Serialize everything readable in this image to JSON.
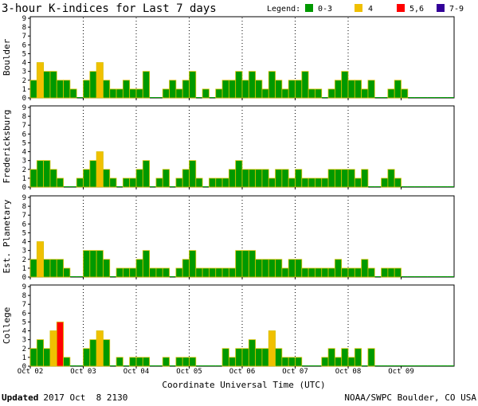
{
  "header": {
    "title": "3-hour K-indices for Last 7 days",
    "legend_label": "Legend:",
    "legend": [
      {
        "label": "0-3",
        "color": "#009900"
      },
      {
        "label": "4",
        "color": "#f0c000"
      },
      {
        "label": "5,6",
        "color": "#ff0000"
      },
      {
        "label": "7-9",
        "color": "#330099"
      }
    ]
  },
  "footer": {
    "updated_label": "Updated",
    "updated_value": "2017 Oct  8 2130",
    "source": "NOAA/SWPC Boulder, CO USA"
  },
  "x_axis": {
    "title": "Coordinate Universal Time (UTC)",
    "tick_labels": [
      "Oct 02",
      "Oct 03",
      "Oct 04",
      "Oct 05",
      "Oct 06",
      "Oct 07",
      "Oct 08",
      "Oct 09"
    ]
  },
  "y_ticks": [
    "0",
    "1",
    "2",
    "3",
    "4",
    "5",
    "6",
    "7",
    "8",
    "9"
  ],
  "chart_data": [
    {
      "type": "bar",
      "ylabel": "Boulder",
      "ylim": [
        0,
        9
      ],
      "values": [
        2,
        4,
        3,
        3,
        2,
        2,
        1,
        0,
        2,
        3,
        4,
        2,
        1,
        1,
        2,
        1,
        1,
        3,
        0,
        0,
        1,
        2,
        1,
        2,
        3,
        0,
        1,
        0,
        1,
        2,
        2,
        3,
        2,
        3,
        2,
        1,
        3,
        2,
        1,
        2,
        2,
        3,
        1,
        1,
        0,
        1,
        2,
        3,
        2,
        2,
        1,
        2,
        0,
        0,
        1,
        2,
        1,
        0,
        0,
        0,
        0,
        0,
        0,
        0
      ]
    },
    {
      "type": "bar",
      "ylabel": "Fredericksburg",
      "ylim": [
        0,
        9
      ],
      "values": [
        2,
        3,
        3,
        2,
        1,
        0,
        0,
        1,
        2,
        3,
        4,
        2,
        1,
        0,
        1,
        1,
        2,
        3,
        0,
        1,
        2,
        0,
        1,
        2,
        3,
        1,
        0,
        1,
        1,
        1,
        2,
        3,
        2,
        2,
        2,
        2,
        1,
        2,
        2,
        1,
        2,
        1,
        1,
        1,
        1,
        2,
        2,
        2,
        2,
        1,
        2,
        0,
        0,
        1,
        2,
        1,
        0,
        0,
        0,
        0,
        0,
        0,
        0,
        0
      ]
    },
    {
      "type": "bar",
      "ylabel": "Est. Planetary",
      "ylim": [
        0,
        9
      ],
      "values": [
        2,
        4,
        2,
        2,
        2,
        1,
        0,
        0,
        3,
        3,
        3,
        2,
        0,
        1,
        1,
        1,
        2,
        3,
        1,
        1,
        1,
        0,
        1,
        2,
        3,
        1,
        1,
        1,
        1,
        1,
        1,
        3,
        3,
        3,
        2,
        2,
        2,
        2,
        1,
        2,
        2,
        1,
        1,
        1,
        1,
        1,
        2,
        1,
        1,
        1,
        2,
        1,
        0,
        1,
        1,
        1,
        0,
        0,
        0,
        0,
        0,
        0,
        0,
        0
      ]
    },
    {
      "type": "bar",
      "ylabel": "College",
      "ylim": [
        0,
        9
      ],
      "values": [
        2,
        3,
        2,
        4,
        5,
        1,
        0,
        0,
        2,
        3,
        4,
        3,
        0,
        1,
        0,
        1,
        1,
        1,
        0,
        0,
        1,
        0,
        1,
        1,
        1,
        0,
        0,
        0,
        0,
        2,
        1,
        2,
        2,
        3,
        2,
        2,
        4,
        2,
        1,
        1,
        1,
        0,
        0,
        0,
        1,
        2,
        1,
        2,
        1,
        2,
        0,
        2,
        0,
        0,
        0,
        0,
        0,
        0,
        0,
        0,
        0,
        0,
        0,
        0
      ]
    }
  ]
}
